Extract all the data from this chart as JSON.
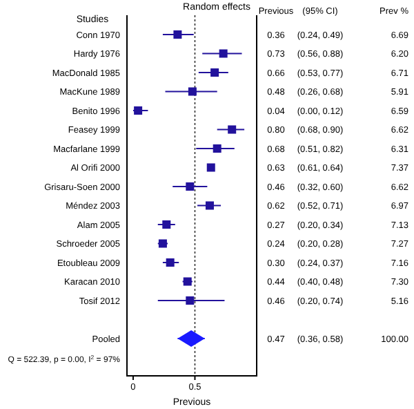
{
  "chart_data": [
    {
      "type": "scatter",
      "orientation": "horizontal",
      "title": "Random effects",
      "xlabel": "Previous",
      "categories": [
        "Conn 1970",
        "Hardy 1976",
        "MacDonald 1985",
        "MacKune 1989",
        "Benito 1996",
        "Feasey 1999",
        "Macfarlane 1999",
        "Al Orifi 2000",
        "Grisaru-Soen 2000",
        "Méndez 2003",
        "Alam 2005",
        "Schroeder 2005",
        "Etoubleau 2009",
        "Karacan 2010",
        "Tosif 2012",
        null,
        "Pooled"
      ],
      "series": [
        {
          "color": "#22129c",
          "marker": "square",
          "values": [
            0.36,
            0.73,
            0.66,
            0.48,
            0.04,
            0.8,
            0.68,
            0.63,
            0.46,
            0.62,
            0.27,
            0.24,
            0.3,
            0.44,
            0.46,
            null,
            null
          ],
          "errors": [
            [
              0.24,
              0.49
            ],
            [
              0.56,
              0.88
            ],
            [
              0.53,
              0.77
            ],
            [
              0.26,
              0.68
            ],
            [
              0.0,
              0.12
            ],
            [
              0.68,
              0.9
            ],
            [
              0.51,
              0.82
            ],
            [
              0.61,
              0.64
            ],
            [
              0.32,
              0.6
            ],
            [
              0.52,
              0.71
            ],
            [
              0.2,
              0.34
            ],
            [
              0.2,
              0.28
            ],
            [
              0.24,
              0.37
            ],
            [
              0.4,
              0.48
            ],
            [
              0.2,
              0.74
            ],
            null,
            null
          ]
        },
        {
          "color": "#1a1aff",
          "marker": "diamond",
          "values": [
            null,
            null,
            null,
            null,
            null,
            null,
            null,
            null,
            null,
            null,
            null,
            null,
            null,
            null,
            null,
            null,
            0.47
          ],
          "errors": [
            null,
            null,
            null,
            null,
            null,
            null,
            null,
            null,
            null,
            null,
            null,
            null,
            null,
            null,
            null,
            null,
            [
              0.36,
              0.58
            ]
          ]
        }
      ],
      "xlim": [
        -0.05,
        1.0
      ],
      "xticks": [
        0,
        0.5
      ],
      "ref_lines": [
        {
          "axis": "x",
          "value": 0.5,
          "line_style": "dotted",
          "color": "#333333"
        }
      ],
      "annotations": [
        "Studies",
        "Q = 522.39, p = 0.00, I$^{2}$ = 97%"
      ]
    },
    {
      "type": "other",
      "annotations": [
        "Previous",
        "(95% CI)",
        "Prev %",
        "0.36",
        "(0.24, 0.49)",
        "6.69",
        "0.73",
        "(0.56, 0.88)",
        "6.20",
        "0.66",
        "(0.53, 0.77)",
        "6.71",
        "0.48",
        "(0.26, 0.68)",
        "5.91",
        "0.04",
        "(0.00, 0.12)",
        "6.59",
        "0.80",
        "(0.68, 0.90)",
        "6.62",
        "0.68",
        "(0.51, 0.82)",
        "6.31",
        "0.63",
        "(0.61, 0.64)",
        "7.37",
        "0.46",
        "(0.32, 0.60)",
        "6.62",
        "0.62",
        "(0.52, 0.71)",
        "6.97",
        "0.27",
        "(0.20, 0.34)",
        "7.13",
        "0.24",
        "(0.20, 0.28)",
        "7.27",
        "0.30",
        "(0.24, 0.37)",
        "7.16",
        "0.44",
        "(0.40, 0.48)",
        "7.30",
        "0.46",
        "(0.20, 0.74)",
        "5.16",
        "0.47",
        "(0.36, 0.58)",
        "100.00"
      ]
    }
  ]
}
